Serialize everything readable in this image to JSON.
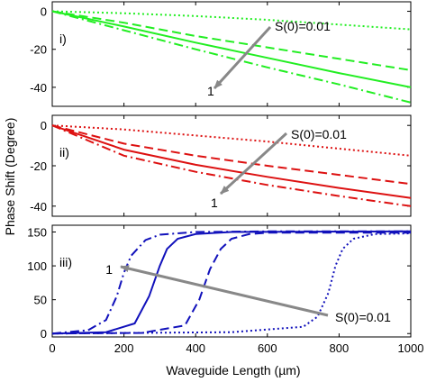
{
  "figure": {
    "ylabel": "Phase Shift (Degree)",
    "xlabel": "Waveguide Length (µm)"
  },
  "chart_data": [
    {
      "type": "line",
      "panel_label": "i)",
      "color": "#22ee22",
      "xlim": [
        0,
        1000
      ],
      "ylim": [
        -50,
        5
      ],
      "x_ticks": [
        0,
        200,
        400,
        600,
        800,
        1000
      ],
      "y_ticks": [
        0,
        -20,
        -40
      ],
      "x_tick_labels_visible": false,
      "annotations": [
        {
          "text": "S(0)=0.01"
        },
        {
          "text": "1"
        }
      ],
      "series": [
        {
          "line_style": "dotted",
          "x": [
            0,
            200,
            400,
            600,
            800,
            1000
          ],
          "values": [
            0,
            -1,
            -2.5,
            -4.5,
            -7,
            -9.5
          ]
        },
        {
          "line_style": "dashed",
          "x": [
            0,
            200,
            400,
            600,
            800,
            1000
          ],
          "values": [
            0,
            -6,
            -13,
            -19,
            -25,
            -31
          ]
        },
        {
          "line_style": "solid",
          "x": [
            0,
            200,
            400,
            600,
            800,
            1000
          ],
          "values": [
            0,
            -8,
            -16.5,
            -24.5,
            -32.5,
            -40
          ]
        },
        {
          "line_style": "dashdot",
          "x": [
            0,
            200,
            400,
            600,
            800,
            1000
          ],
          "values": [
            0,
            -10,
            -20,
            -29.5,
            -38.5,
            -48
          ]
        }
      ]
    },
    {
      "type": "line",
      "panel_label": "ii)",
      "color": "#dd1111",
      "xlim": [
        0,
        1000
      ],
      "ylim": [
        -45,
        5
      ],
      "x_ticks": [
        0,
        200,
        400,
        600,
        800,
        1000
      ],
      "y_ticks": [
        0,
        -20,
        -40
      ],
      "x_tick_labels_visible": false,
      "annotations": [
        {
          "text": "S(0)=0.01"
        },
        {
          "text": "1"
        }
      ],
      "series": [
        {
          "line_style": "dotted",
          "x": [
            0,
            200,
            400,
            600,
            800,
            1000
          ],
          "values": [
            0,
            -2,
            -5,
            -8,
            -11.5,
            -15
          ]
        },
        {
          "line_style": "dashed",
          "x": [
            0,
            200,
            400,
            600,
            800,
            1000
          ],
          "values": [
            0,
            -9,
            -15,
            -20,
            -24.5,
            -29
          ]
        },
        {
          "line_style": "solid",
          "x": [
            0,
            200,
            400,
            600,
            800,
            1000
          ],
          "values": [
            0,
            -12,
            -19.5,
            -25.5,
            -31,
            -36
          ]
        },
        {
          "line_style": "dashdot",
          "x": [
            0,
            200,
            400,
            600,
            800,
            1000
          ],
          "values": [
            0,
            -15,
            -23,
            -29.5,
            -35,
            -40
          ]
        }
      ]
    },
    {
      "type": "line",
      "panel_label": "iii)",
      "color": "#1111bb",
      "xlim": [
        0,
        1000
      ],
      "ylim": [
        -5,
        160
      ],
      "x_ticks": [
        0,
        200,
        400,
        600,
        800,
        1000
      ],
      "y_ticks": [
        0,
        50,
        100,
        150
      ],
      "x_tick_labels_visible": true,
      "annotations": [
        {
          "text": "1"
        },
        {
          "text": "S(0)=0.01"
        }
      ],
      "series": [
        {
          "line_style": "dashdot",
          "x": [
            0,
            100,
            150,
            180,
            200,
            220,
            260,
            300,
            400,
            600,
            800,
            1000
          ],
          "values": [
            0,
            5,
            20,
            55,
            90,
            115,
            138,
            146,
            150,
            151,
            151,
            151
          ]
        },
        {
          "line_style": "solid",
          "x": [
            0,
            150,
            230,
            270,
            300,
            320,
            350,
            400,
            500,
            1000
          ],
          "values": [
            0,
            2,
            15,
            55,
            100,
            125,
            140,
            147,
            150,
            151
          ]
        },
        {
          "line_style": "dashed",
          "x": [
            0,
            250,
            370,
            410,
            440,
            470,
            500,
            550,
            600,
            1000
          ],
          "values": [
            0,
            1,
            12,
            50,
            95,
            125,
            140,
            147,
            149,
            149
          ]
        },
        {
          "line_style": "dotted",
          "x": [
            0,
            500,
            700,
            740,
            770,
            790,
            810,
            840,
            900,
            1000
          ],
          "values": [
            0,
            2,
            10,
            25,
            60,
            100,
            125,
            140,
            147,
            148
          ]
        }
      ]
    }
  ]
}
